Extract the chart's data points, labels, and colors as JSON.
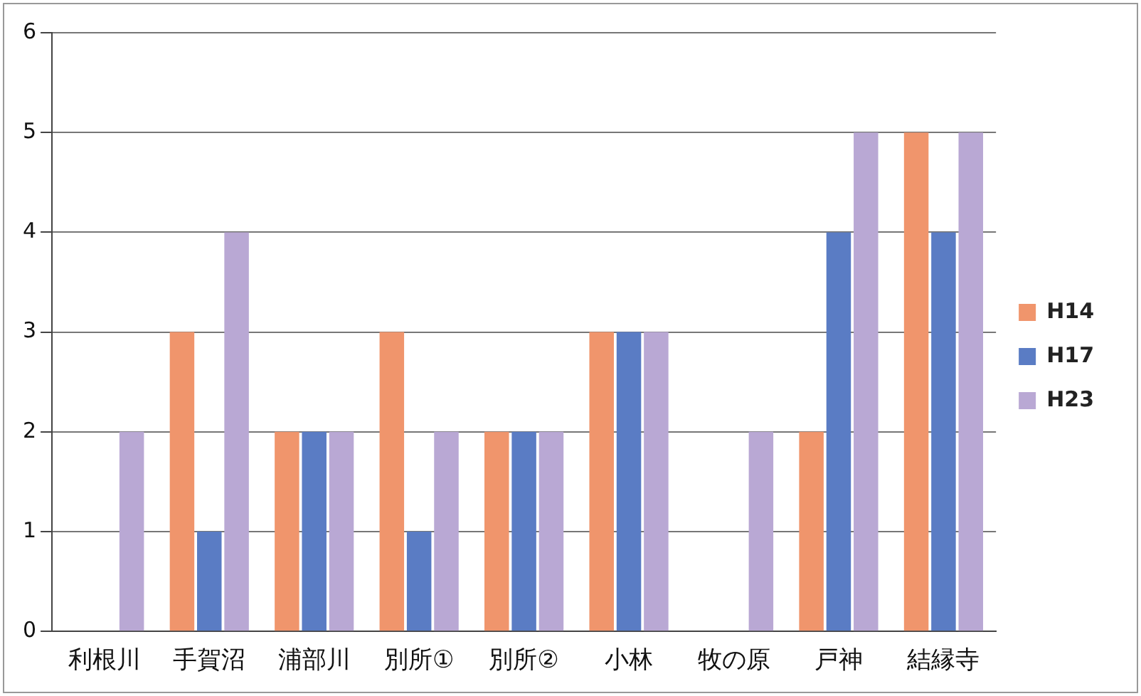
{
  "chart_data": {
    "type": "bar",
    "categories": [
      "利根川",
      "手賀沼",
      "浦部川",
      "別所①",
      "別所②",
      "小林",
      "牧の原",
      "戸神",
      "結縁寺"
    ],
    "series": [
      {
        "name": "H14",
        "color": "#f0956c",
        "values": [
          0,
          3,
          2,
          3,
          2,
          3,
          0,
          2,
          5
        ]
      },
      {
        "name": "H17",
        "color": "#5a7cc4",
        "values": [
          0,
          1,
          2,
          1,
          2,
          3,
          0,
          4,
          4
        ]
      },
      {
        "name": "H23",
        "color": "#b9a8d4",
        "values": [
          2,
          4,
          2,
          2,
          2,
          3,
          2,
          5,
          5
        ]
      }
    ],
    "ylim": [
      0,
      6
    ],
    "yticks": [
      0,
      1,
      2,
      3,
      4,
      5,
      6
    ],
    "grid": "y",
    "legend": "right"
  }
}
